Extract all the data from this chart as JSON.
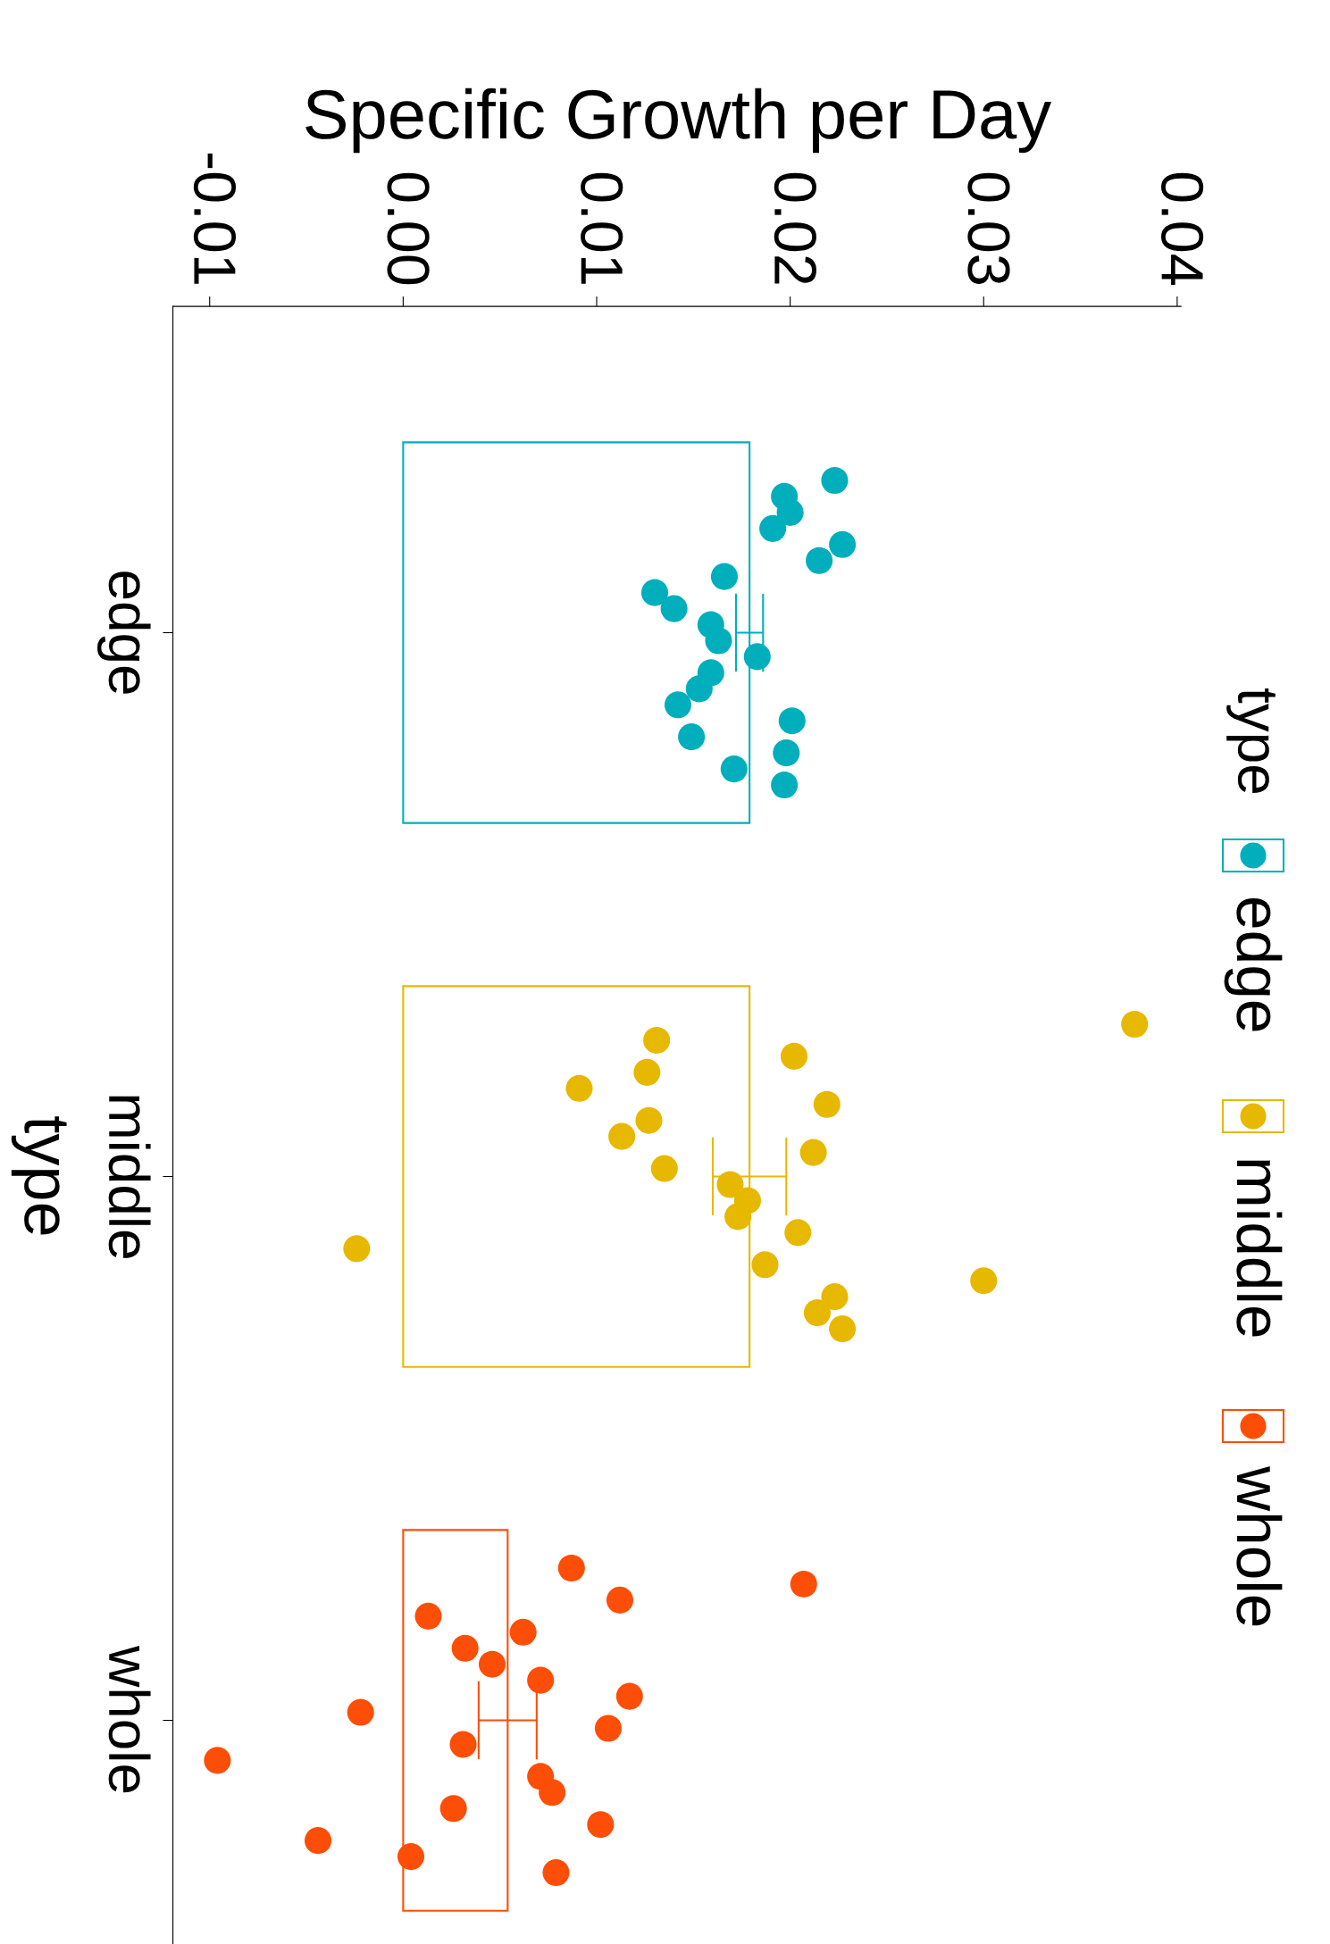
{
  "chart_data": {
    "type": "bar",
    "orientation": "horizontal",
    "xlabel": "Specific Growth per Day",
    "ylabel": "type",
    "legend_title": "type",
    "legend": "right",
    "categories": [
      "edge",
      "middle",
      "whole"
    ],
    "xlim": [
      -0.0119,
      0.0402
    ],
    "xticks": [
      {
        "value": -0.01,
        "label": "-0.01"
      },
      {
        "value": 0,
        "label": "0.00"
      },
      {
        "value": 0.01,
        "label": "0.01"
      },
      {
        "value": 0.02,
        "label": "0.02"
      },
      {
        "value": 0.03,
        "label": "0.03"
      },
      {
        "value": 0.04,
        "label": "0.04"
      }
    ],
    "grid": false,
    "series": [
      {
        "type": "bar",
        "colors": [
          "#00afbb",
          "#e7b800",
          "#fc4e07"
        ],
        "values": [
          0.0179,
          0.0179,
          0.0054
        ],
        "errors": [
          0.0007,
          0.0019,
          0.0015
        ]
      },
      {
        "type": "scatter",
        "name": "edge",
        "color": "#00afbb",
        "marker": "circle",
        "x": [
          "edge",
          "edge",
          "edge",
          "edge",
          "edge",
          "edge",
          "edge",
          "edge",
          "edge",
          "edge",
          "edge",
          "edge",
          "edge",
          "edge",
          "edge",
          "edge",
          "edge",
          "edge",
          "edge",
          "edge"
        ],
        "values": [
          0.0223,
          0.0197,
          0.02,
          0.0191,
          0.0227,
          0.0215,
          0.0166,
          0.013,
          0.014,
          0.0159,
          0.0163,
          0.0183,
          0.0159,
          0.0153,
          0.0142,
          0.0201,
          0.0149,
          0.0198,
          0.0171,
          0.0197
        ]
      },
      {
        "type": "scatter",
        "name": "middle",
        "color": "#e7b800",
        "marker": "circle",
        "x": [
          "middle",
          "middle",
          "middle",
          "middle",
          "middle",
          "middle",
          "middle",
          "middle",
          "middle",
          "middle",
          "middle",
          "middle",
          "middle",
          "middle",
          "middle",
          "middle",
          "middle",
          "middle",
          "middle",
          "middle"
        ],
        "values": [
          0.0378,
          0.0131,
          0.0202,
          0.0126,
          0.0091,
          0.0219,
          0.0127,
          0.0113,
          0.0212,
          0.0135,
          0.0169,
          0.0178,
          0.0173,
          0.0204,
          -0.0024,
          0.0187,
          0.03,
          0.0223,
          0.0214,
          0.0227
        ]
      },
      {
        "type": "scatter",
        "name": "whole",
        "color": "#fc4e07",
        "marker": "circle",
        "x": [
          "whole",
          "whole",
          "whole",
          "whole",
          "whole",
          "whole",
          "whole",
          "whole",
          "whole",
          "whole",
          "whole",
          "whole",
          "whole",
          "whole",
          "whole",
          "whole",
          "whole",
          "whole",
          "whole",
          "whole"
        ],
        "values": [
          0.0087,
          0.0207,
          0.0112,
          0.0013,
          0.0062,
          0.0032,
          0.0046,
          0.0071,
          0.0117,
          -0.0022,
          0.0106,
          0.0031,
          -0.0096,
          0.0071,
          0.0077,
          0.0026,
          0.0102,
          -0.0044,
          0.0004,
          0.0079
        ]
      }
    ]
  }
}
